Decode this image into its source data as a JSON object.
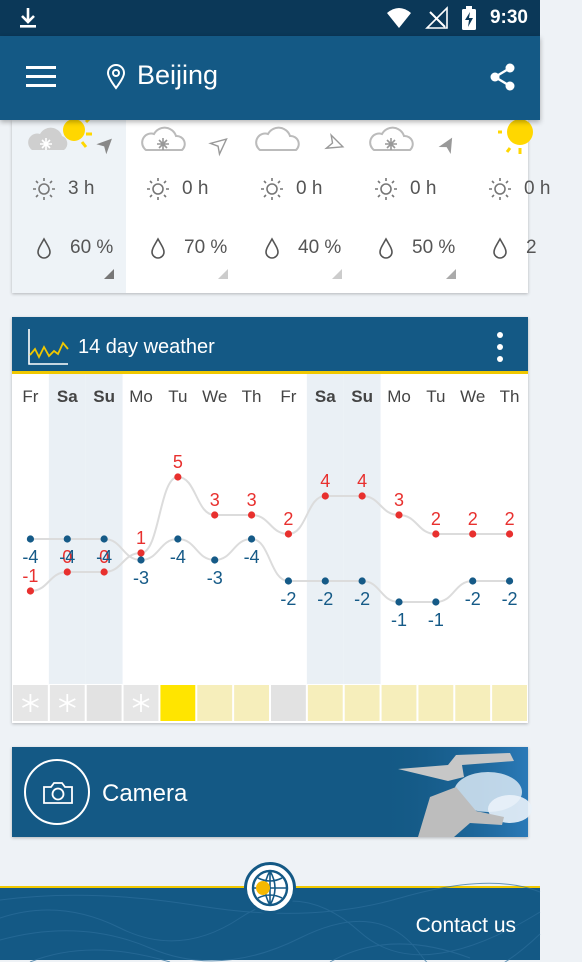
{
  "status_bar": {
    "time": "9:30"
  },
  "app_bar": {
    "city": "Beijing"
  },
  "hourly": [
    {
      "weather": "snow-sun",
      "sunshine": "3 h",
      "precip": "60 %"
    },
    {
      "weather": "snow-cloud",
      "sunshine": "0 h",
      "precip": "70 %"
    },
    {
      "weather": "cloud",
      "sunshine": "0 h",
      "precip": "40 %"
    },
    {
      "weather": "snow-cloud",
      "sunshine": "0 h",
      "precip": "50 %"
    },
    {
      "weather": "sun",
      "sunshine": "0 h",
      "precip": "2"
    }
  ],
  "forecast": {
    "title": "14 day weather",
    "chart_data": {
      "type": "line",
      "categories": [
        "Fr",
        "Sa",
        "Su",
        "Mo",
        "Tu",
        "We",
        "Th",
        "Fr",
        "Sa",
        "Su",
        "Mo",
        "Tu",
        "We",
        "Th"
      ],
      "weekend": [
        false,
        true,
        true,
        false,
        false,
        false,
        false,
        false,
        true,
        true,
        false,
        false,
        false,
        false
      ],
      "series": [
        {
          "kind": "max",
          "values": [
            -1,
            0,
            0,
            1,
            5,
            3,
            3,
            2,
            4,
            4,
            3,
            2,
            2,
            2
          ],
          "color": "#e8302e"
        },
        {
          "kind": "min",
          "values": [
            -4,
            -4,
            -4,
            -3,
            -4,
            -3,
            -4,
            -2,
            -2,
            -2,
            -1,
            -1,
            -2,
            -2
          ],
          "color": "#155a87"
        }
      ],
      "conditions": [
        "snow",
        "snow",
        "cloudy",
        "snow",
        "sunny",
        "fair",
        "fair",
        "cloudy",
        "fair",
        "fair",
        "fair",
        "fair",
        "fair",
        "fair"
      ]
    }
  },
  "camera": {
    "label": "Camera"
  },
  "footer": {
    "contact": "Contact us"
  },
  "colors": {
    "primary": "#145985",
    "status_bar": "#0b3858",
    "accent": "#f0c800",
    "max_temp": "#e8302e",
    "min_temp": "#155a87"
  }
}
